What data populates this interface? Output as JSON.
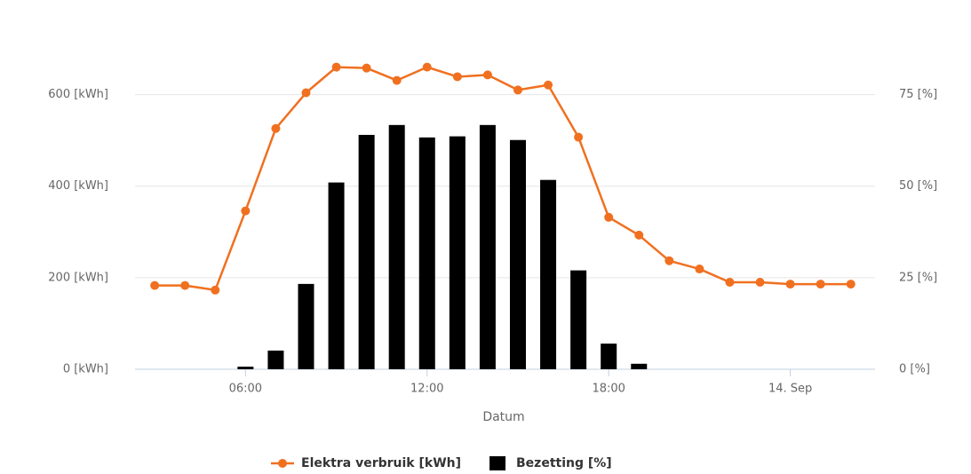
{
  "chart_data": {
    "type": "combo",
    "x_axis_title": "Datum",
    "x": [
      3,
      4,
      5,
      6,
      7,
      8,
      9,
      10,
      11,
      12,
      13,
      14,
      15,
      16,
      17,
      18,
      19,
      20,
      21,
      22,
      23,
      24,
      25,
      26
    ],
    "xlim": [
      2.35,
      26.8
    ],
    "xticks": [
      {
        "value": 6,
        "label": "06:00"
      },
      {
        "value": 12,
        "label": "12:00"
      },
      {
        "value": 18,
        "label": "18:00"
      },
      {
        "value": 24,
        "label": "14. Sep"
      }
    ],
    "ylim": [
      0,
      700
    ],
    "yticks": [
      {
        "value": 0,
        "label": "0 [kWh]"
      },
      {
        "value": 200,
        "label": "200 [kWh]"
      },
      {
        "value": 400,
        "label": "400 [kWh]"
      },
      {
        "value": 600,
        "label": "600 [kWh]"
      }
    ],
    "y2lim": [
      0,
      87.5
    ],
    "y2ticks": [
      {
        "value": 0,
        "label": "0 [%]"
      },
      {
        "value": 25,
        "label": "25 [%]"
      },
      {
        "value": 50,
        "label": "50 [%]"
      },
      {
        "value": 75,
        "label": "75 [%]"
      }
    ],
    "grid": true,
    "legend": "bottom",
    "series": [
      {
        "name": "Elektra verbruik [kWh]",
        "type": "line",
        "color": "#f07020",
        "values": [
          183,
          183,
          173,
          346,
          526,
          604,
          660,
          658,
          631,
          660,
          639,
          643,
          610,
          621,
          507,
          332,
          293,
          237,
          219,
          190,
          190,
          186,
          186,
          186
        ]
      },
      {
        "name": "Bezetting [%]",
        "type": "bar",
        "axis": "y2",
        "color": "#000000",
        "values": [
          0,
          0,
          0,
          0.7,
          5.1,
          23.3,
          51,
          64,
          66.7,
          63.3,
          63.6,
          66.7,
          62.6,
          51.7,
          27,
          7,
          1.5,
          0,
          0,
          0,
          0,
          0,
          0,
          0
        ]
      }
    ]
  }
}
